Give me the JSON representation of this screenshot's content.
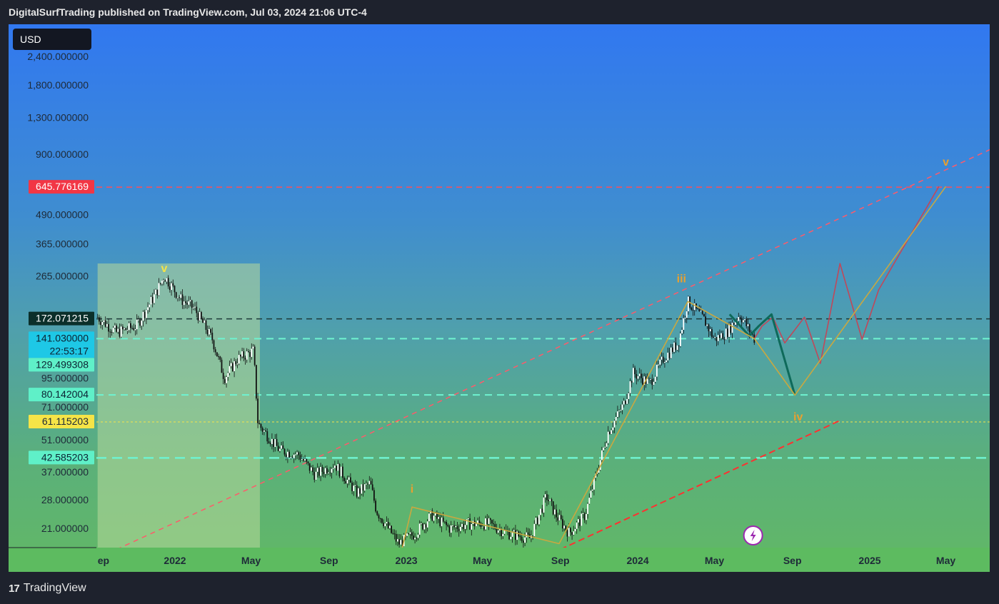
{
  "header": {
    "title": "DigitalSurfTrading published on TradingView.com, Jul 03, 2024 21:06 UTC-4"
  },
  "toolbar": {
    "currency": "USD"
  },
  "footer": {
    "brand": "TradingView",
    "logo_glyph": "17"
  },
  "colors": {
    "background": "#1e222d",
    "gradient_top": "#3178f0",
    "gradient_bottom": "#62b865",
    "resistance": "#ff4d5a",
    "support": "#6ff2d0",
    "yellow_level": "#f5e447",
    "wave_label": "#e8a030",
    "projection_red": "#c0485a",
    "projection_teal": "#0e6a5a",
    "projection_gold": "#c9a840"
  },
  "chart_data": {
    "type": "line",
    "scale": "log",
    "y_ticks": [
      "2,400.000000",
      "1,800.000000",
      "1,300.000000",
      "900.000000",
      "490.000000",
      "365.000000",
      "265.000000",
      "95.000000",
      "71.000000",
      "51.000000",
      "37.000000",
      "28.000000",
      "21.000000"
    ],
    "y_tick_values": [
      2400,
      1800,
      1300,
      900,
      490,
      365,
      265,
      95,
      71,
      51,
      37,
      28,
      21
    ],
    "x_ticks": [
      "ep",
      "2022",
      "May",
      "Sep",
      "2023",
      "May",
      "Sep",
      "2024",
      "May",
      "Sep",
      "2025",
      "May"
    ],
    "x_tick_dates": [
      "2021-09-01",
      "2022-01-01",
      "2022-05-01",
      "2022-09-01",
      "2023-01-01",
      "2023-05-01",
      "2023-09-01",
      "2024-01-01",
      "2024-05-01",
      "2024-09-01",
      "2025-01-01",
      "2025-05-01"
    ],
    "price_badges": [
      {
        "label": "645.776169",
        "value": 645.776169,
        "bg": "#f23645",
        "fg": "#ffffff",
        "line": "dashed-red"
      },
      {
        "label": "172.071215",
        "value": 172.071215,
        "bg": "#0b2f2a",
        "fg": "#ffffff",
        "line": "dashed-dark"
      },
      {
        "label": "141.030000",
        "value": 141.03,
        "bg": "#1ec8e6",
        "fg": "#0b2233",
        "line": "dashed-teal"
      },
      {
        "label": "22:53:17",
        "value": 141.03,
        "bg": "#1ec8e6",
        "fg": "#0b2233",
        "line": "none"
      },
      {
        "label": "129.499308",
        "value": 129.499308,
        "bg": "#5ff0c8",
        "fg": "#0b2233",
        "line": "none"
      },
      {
        "label": "80.142004",
        "value": 80.142004,
        "bg": "#5ff0c8",
        "fg": "#0b2233",
        "line": "dashed-teal"
      },
      {
        "label": "61.115203",
        "value": 61.115203,
        "bg": "#f5e447",
        "fg": "#1e2a38",
        "line": "dotted-yellow"
      },
      {
        "label": "42.585203",
        "value": 42.585203,
        "bg": "#5ff0c8",
        "fg": "#0b2233",
        "line": "dashed-teal-bold"
      }
    ],
    "wave_labels": [
      {
        "text": "v",
        "date": "2021-12-15",
        "value": 275,
        "color": "#f5e447"
      },
      {
        "text": "i",
        "date": "2023-01-10",
        "value": 30,
        "color": "#e8a030"
      },
      {
        "text": "iii",
        "date": "2024-03-10",
        "value": 248,
        "color": "#e8a030"
      },
      {
        "text": "iv",
        "date": "2024-09-10",
        "value": 62,
        "color": "#e8a030"
      },
      {
        "text": "v",
        "date": "2025-05-01",
        "value": 800,
        "color": "#e8a030"
      }
    ],
    "price_series": {
      "dates": [
        "2021-09-01",
        "2021-10-01",
        "2021-11-01",
        "2021-12-01",
        "2021-12-15",
        "2022-01-10",
        "2022-02-01",
        "2022-03-01",
        "2022-03-20",
        "2022-04-10",
        "2022-05-05",
        "2022-05-12",
        "2022-06-15",
        "2022-07-15",
        "2022-08-10",
        "2022-09-10",
        "2022-10-15",
        "2022-11-05",
        "2022-11-15",
        "2022-12-20",
        "2023-01-15",
        "2023-02-10",
        "2023-03-10",
        "2023-04-10",
        "2023-05-10",
        "2023-06-10",
        "2023-07-15",
        "2023-08-10",
        "2023-08-25",
        "2023-09-15",
        "2023-10-10",
        "2023-10-25",
        "2023-11-15",
        "2023-12-10",
        "2023-12-25",
        "2024-01-20",
        "2024-02-10",
        "2024-03-05",
        "2024-03-20",
        "2024-04-15",
        "2024-05-01",
        "2024-05-20",
        "2024-06-10",
        "2024-07-03"
      ],
      "values": [
        175,
        150,
        160,
        220,
        265,
        210,
        190,
        140,
        95,
        115,
        125,
        60,
        46,
        44,
        36,
        40,
        30,
        33,
        25,
        18,
        20,
        24,
        21,
        22,
        22,
        20,
        19,
        29,
        24,
        20,
        24,
        34,
        55,
        73,
        100,
        90,
        115,
        135,
        205,
        170,
        140,
        150,
        180,
        141
      ]
    },
    "projections": [
      {
        "name": "red-path",
        "color": "#c0485a",
        "dates": [
          "2024-07-03",
          "2024-07-15",
          "2024-08-01",
          "2024-08-20",
          "2024-09-20",
          "2024-10-15",
          "2024-11-15",
          "2024-12-20",
          "2025-01-15",
          "2025-04-20"
        ],
        "values": [
          141,
          160,
          175,
          135,
          175,
          110,
          300,
          140,
          230,
          650
        ]
      },
      {
        "name": "teal-path",
        "color": "#0e6a5a",
        "dates": [
          "2024-05-25",
          "2024-06-25",
          "2024-07-10",
          "2024-07-30",
          "2024-09-05"
        ],
        "values": [
          180,
          145,
          160,
          180,
          80
        ]
      },
      {
        "name": "gold-path",
        "color": "#c9a840",
        "dates": [
          "2024-03-20",
          "2024-07-03",
          "2024-09-05",
          "2025-05-01"
        ],
        "values": [
          205,
          141,
          80,
          650
        ]
      },
      {
        "name": "wave-1-3",
        "color": "#c9a840",
        "dates": [
          "2022-12-25",
          "2023-01-10",
          "2023-08-30",
          "2024-03-20"
        ],
        "values": [
          17,
          26,
          18,
          205
        ]
      }
    ],
    "trendlines": [
      {
        "name": "upper-channel",
        "color": "#ff5a6a",
        "dates": [
          "2021-10-01",
          "2025-09-01"
        ],
        "values": [
          17,
          1100
        ]
      },
      {
        "name": "lower-channel",
        "color": "#ff3030",
        "dates": [
          "2023-09-01",
          "2024-11-15"
        ],
        "values": [
          17,
          62
        ]
      }
    ],
    "shaded_region": {
      "from": "2021-09-01",
      "to": "2022-05-15",
      "top_value": 300,
      "color": "#b8d89a"
    },
    "grid": false
  }
}
